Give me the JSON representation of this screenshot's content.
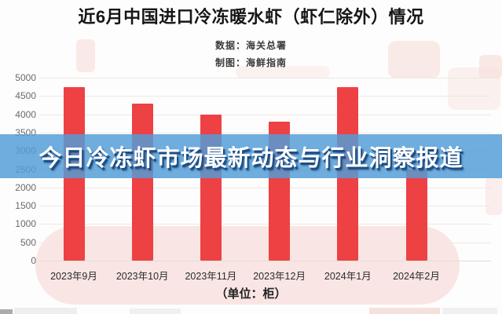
{
  "header": {
    "title": "近6月中国进口冷冻暖水虾（虾仁除外）情况",
    "source_line": "数据：海关总署",
    "credit_line": "制图：海鲜指南"
  },
  "overlay_banner": {
    "text": "今日冷冻虾市场最新动态与行业洞察报道",
    "background_color": "#529dd6",
    "background_opacity": 0.84,
    "text_color": "#ffffff",
    "shadow_color": "#1d4e85"
  },
  "chart_data": {
    "type": "bar",
    "title": "近6月中国进口冷冻暖水虾（虾仁除外）情况",
    "categories": [
      "2023年9月",
      "2023年10月",
      "2023年11月",
      "2023年12月",
      "2024年1月",
      "2024年2月"
    ],
    "values": [
      4750,
      4300,
      4000,
      3800,
      4740,
      2500
    ],
    "unit_label": "（单位：柜）",
    "xlabel": "",
    "ylabel": "",
    "ylim": [
      0,
      5000
    ],
    "ytick_step": 500,
    "grid": true,
    "legend": "none",
    "bar_color": "#ee4144",
    "grid_color": "#efe7e4",
    "tick_label_color": "#6a6a6a"
  }
}
